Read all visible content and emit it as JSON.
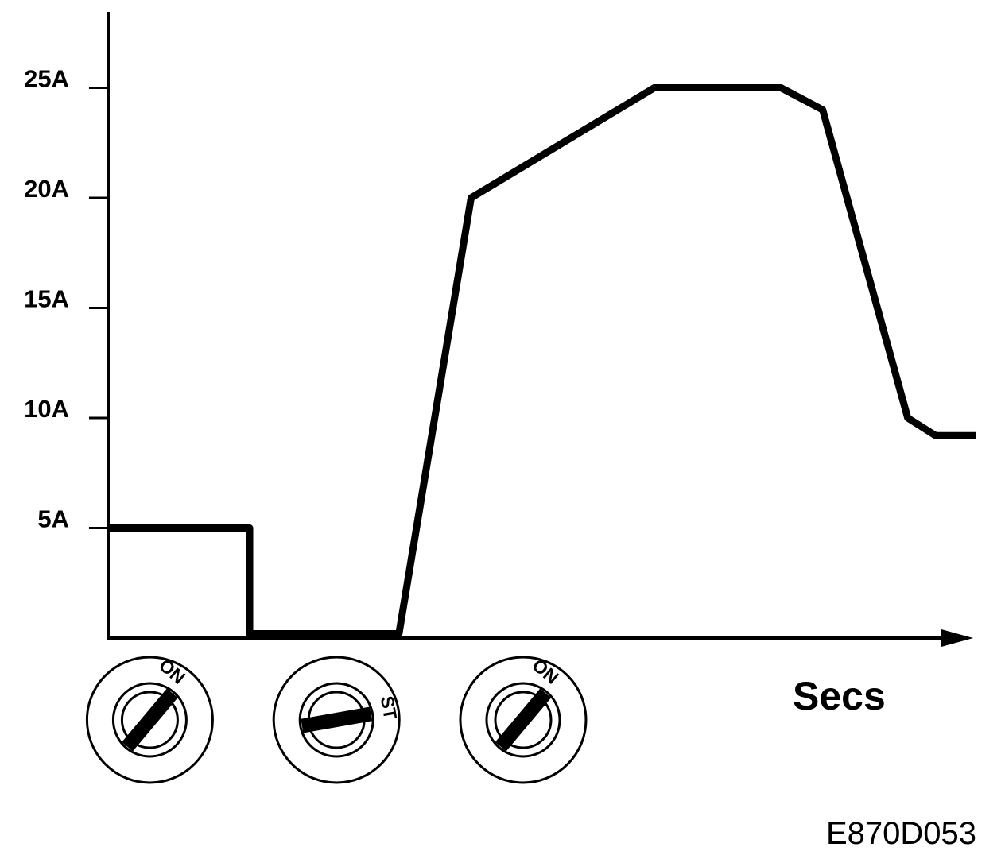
{
  "chart_data": {
    "type": "line",
    "xlabel": "Secs",
    "ylabel": "",
    "y_ticks": [
      {
        "value": 5,
        "label": "5A"
      },
      {
        "value": 10,
        "label": "10A"
      },
      {
        "value": 15,
        "label": "15A"
      },
      {
        "value": 20,
        "label": "20A"
      },
      {
        "value": 25,
        "label": "25A"
      }
    ],
    "ylim": [
      0,
      28.5
    ],
    "xlim": [
      0,
      100
    ],
    "grid": false,
    "series": [
      {
        "x": [
          0,
          16.3,
          16.3,
          33.5,
          41.8,
          62.9,
          77.5,
          82.3,
          92.1,
          95.3,
          100
        ],
        "y": [
          5,
          5,
          0.2,
          0.2,
          20,
          25,
          25,
          24,
          10,
          9.2,
          9.2
        ]
      }
    ],
    "key_positions": [
      {
        "label": "ON",
        "x": 4.8
      },
      {
        "label": "ST",
        "x": 26.3
      },
      {
        "label": "ON",
        "x": 47.8
      }
    ]
  },
  "figure_code": "E870D053"
}
